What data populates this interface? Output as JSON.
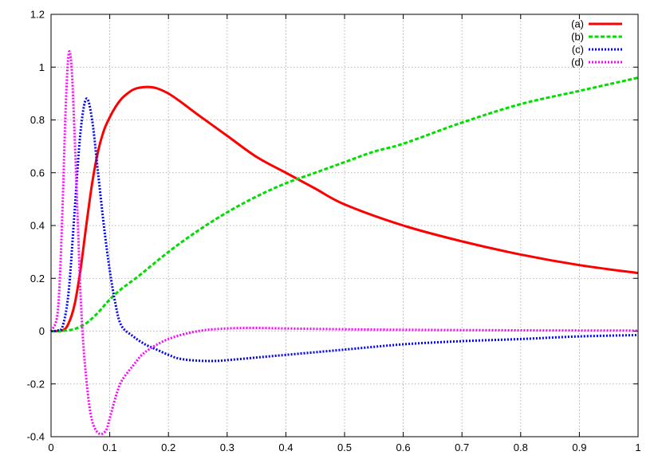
{
  "chart_data": {
    "type": "line",
    "title": "",
    "xlabel": "",
    "ylabel": "",
    "xlim": [
      0,
      1
    ],
    "ylim": [
      -0.4,
      1.2
    ],
    "grid": true,
    "legend_position": "top-right",
    "x_ticks": [
      0,
      0.1,
      0.2,
      0.3,
      0.4,
      0.5,
      0.6,
      0.7,
      0.8,
      0.9,
      1
    ],
    "x_tick_labels": [
      "0",
      "0.1",
      "0.2",
      "0.3",
      "0.4",
      "0.5",
      "0.6",
      "0.7",
      "0.8",
      "0.9",
      "1"
    ],
    "y_ticks": [
      -0.4,
      -0.2,
      0,
      0.2,
      0.4,
      0.6,
      0.8,
      1,
      1.2
    ],
    "y_tick_labels": [
      "-0.4",
      "-0.2",
      "0",
      "0.2",
      "0.4",
      "0.6",
      "0.8",
      "1",
      "1.2"
    ],
    "series": [
      {
        "name": "(a)",
        "color": "#ff0000",
        "style": "solid",
        "x": [
          0,
          0.02,
          0.03,
          0.04,
          0.05,
          0.06,
          0.07,
          0.08,
          0.09,
          0.1,
          0.11,
          0.12,
          0.13,
          0.14,
          0.15,
          0.165,
          0.18,
          0.2,
          0.22,
          0.25,
          0.3,
          0.35,
          0.4,
          0.45,
          0.5,
          0.6,
          0.7,
          0.8,
          0.9,
          1
        ],
        "y": [
          0,
          0.003,
          0.03,
          0.1,
          0.23,
          0.4,
          0.56,
          0.68,
          0.76,
          0.81,
          0.85,
          0.88,
          0.9,
          0.915,
          0.922,
          0.925,
          0.92,
          0.9,
          0.87,
          0.82,
          0.74,
          0.66,
          0.6,
          0.54,
          0.48,
          0.4,
          0.34,
          0.29,
          0.25,
          0.22
        ]
      },
      {
        "name": "(b)",
        "color": "#00dd00",
        "style": "dashed",
        "x": [
          0,
          0.02,
          0.04,
          0.06,
          0.08,
          0.1,
          0.12,
          0.15,
          0.2,
          0.25,
          0.3,
          0.35,
          0.4,
          0.45,
          0.5,
          0.55,
          0.6,
          0.7,
          0.8,
          0.9,
          1
        ],
        "y": [
          0,
          0.001,
          0.008,
          0.03,
          0.07,
          0.12,
          0.16,
          0.21,
          0.3,
          0.38,
          0.45,
          0.51,
          0.56,
          0.6,
          0.64,
          0.68,
          0.71,
          0.79,
          0.86,
          0.91,
          0.96
        ]
      },
      {
        "name": "(c)",
        "color": "#0000ff",
        "style": "dotted",
        "x": [
          0,
          0.01,
          0.02,
          0.03,
          0.04,
          0.05,
          0.06,
          0.07,
          0.08,
          0.09,
          0.1,
          0.11,
          0.12,
          0.14,
          0.16,
          0.18,
          0.2,
          0.22,
          0.25,
          0.28,
          0.3,
          0.35,
          0.4,
          0.5,
          0.6,
          0.7,
          0.8,
          0.9,
          1
        ],
        "y": [
          0,
          0.002,
          0.02,
          0.15,
          0.45,
          0.75,
          0.88,
          0.8,
          0.6,
          0.4,
          0.23,
          0.1,
          0.02,
          -0.02,
          -0.05,
          -0.07,
          -0.09,
          -0.105,
          -0.112,
          -0.113,
          -0.11,
          -0.1,
          -0.09,
          -0.07,
          -0.05,
          -0.038,
          -0.03,
          -0.02,
          -0.015
        ]
      },
      {
        "name": "(d)",
        "color": "#ff00ff",
        "style": "dotted",
        "x": [
          0,
          0.01,
          0.015,
          0.02,
          0.025,
          0.03,
          0.035,
          0.04,
          0.045,
          0.05,
          0.055,
          0.06,
          0.065,
          0.07,
          0.075,
          0.08,
          0.085,
          0.09,
          0.095,
          0.1,
          0.11,
          0.12,
          0.14,
          0.16,
          0.2,
          0.25,
          0.3,
          0.35,
          0.4,
          0.5,
          0.6,
          0.8,
          1
        ],
        "y": [
          0,
          0.05,
          0.2,
          0.5,
          0.85,
          1.05,
          1.0,
          0.75,
          0.45,
          0.15,
          -0.05,
          -0.18,
          -0.28,
          -0.34,
          -0.37,
          -0.385,
          -0.39,
          -0.385,
          -0.37,
          -0.33,
          -0.25,
          -0.19,
          -0.13,
          -0.08,
          -0.03,
          0.0,
          0.01,
          0.012,
          0.01,
          0.007,
          0.005,
          0.003,
          0.002
        ]
      }
    ]
  }
}
